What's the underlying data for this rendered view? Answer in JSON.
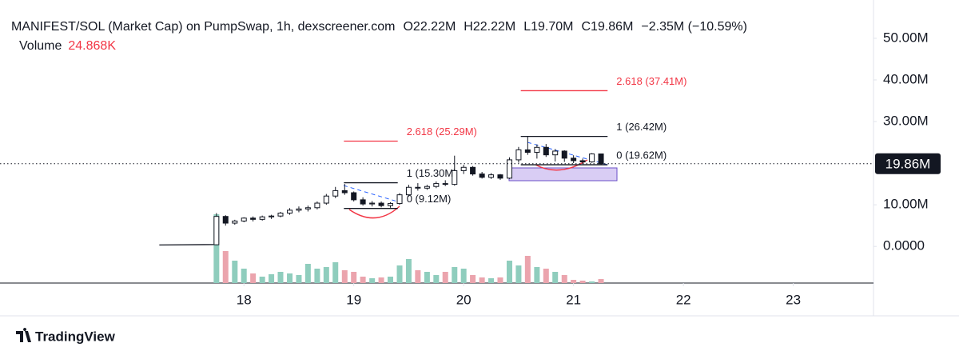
{
  "chart_data": {
    "type": "candlestick",
    "title": "MANIFEST/SOL (Market Cap) on PumpSwap, 1h, dexscreener.com",
    "ohlc_legend": [
      "O22.22M",
      "H22.22M",
      "L19.70M",
      "C19.86M",
      "−2.35M (−10.59%)"
    ],
    "volume_title": "Volume",
    "volume_label": "24.868K",
    "x": [
      17.75,
      17.833,
      17.917,
      18,
      18.083,
      18.167,
      18.25,
      18.333,
      18.417,
      18.5,
      18.583,
      18.667,
      18.75,
      18.833,
      18.917,
      19,
      19.083,
      19.167,
      19.25,
      19.333,
      19.417,
      19.5,
      19.583,
      19.667,
      19.75,
      19.833,
      19.917,
      20,
      20.083,
      20.167,
      20.25,
      20.333,
      20.417,
      20.5,
      20.583,
      20.667,
      20.75,
      20.833,
      20.917,
      21,
      21.083,
      21.167,
      21.25
    ],
    "open": [
      0.4,
      7.2,
      5.6,
      6.1,
      6.8,
      6.5,
      7.1,
      7.3,
      8.0,
      8.7,
      9.0,
      9.3,
      10.4,
      12.1,
      13.4,
      12.9,
      11.2,
      10.2,
      10.4,
      9.8,
      10.3,
      12.4,
      14.2,
      14.0,
      14.4,
      15.1,
      14.9,
      18.2,
      19.0,
      17.4,
      16.6,
      17.2,
      16.4,
      20.8,
      23.2,
      22.6,
      23.8,
      22.0,
      22.9,
      21.2,
      20.6,
      20.3,
      22.22
    ],
    "high": [
      8.0,
      7.5,
      6.4,
      7.0,
      7.2,
      7.4,
      7.6,
      8.3,
      9.2,
      9.6,
      9.8,
      10.8,
      12.6,
      14.3,
      15.0,
      13.2,
      11.8,
      10.9,
      10.8,
      10.6,
      12.8,
      14.8,
      15.2,
      14.8,
      15.6,
      15.9,
      21.8,
      19.6,
      19.3,
      17.9,
      17.6,
      17.4,
      21.4,
      23.9,
      26.4,
      24.5,
      24.6,
      23.4,
      23.1,
      21.9,
      21.1,
      22.4,
      22.22
    ],
    "low": [
      0.3,
      5.0,
      5.2,
      5.8,
      6.0,
      6.2,
      6.6,
      7.0,
      7.6,
      8.2,
      8.4,
      8.9,
      10.0,
      11.6,
      12.4,
      10.8,
      9.8,
      9.6,
      9.4,
      9.3,
      10.0,
      12.0,
      13.4,
      13.6,
      14.0,
      14.5,
      14.6,
      17.4,
      17.0,
      16.3,
      16.2,
      16.0,
      16.2,
      20.1,
      22.0,
      21.1,
      21.5,
      20.4,
      20.3,
      20.0,
      19.8,
      20.1,
      19.7
    ],
    "close": [
      7.2,
      5.6,
      6.1,
      6.8,
      6.5,
      7.1,
      7.3,
      8.0,
      8.7,
      9.0,
      9.3,
      10.4,
      12.1,
      13.4,
      12.9,
      11.2,
      10.2,
      10.4,
      9.8,
      10.3,
      12.4,
      14.2,
      14.0,
      14.4,
      15.1,
      14.9,
      18.2,
      19.0,
      17.4,
      16.6,
      17.2,
      16.4,
      20.8,
      23.2,
      22.6,
      23.8,
      22.0,
      22.9,
      21.2,
      20.6,
      20.3,
      22.22,
      19.86
    ],
    "volume": [
      430,
      200,
      140,
      90,
      60,
      40,
      55,
      70,
      60,
      50,
      120,
      90,
      100,
      130,
      80,
      70,
      40,
      30,
      35,
      40,
      110,
      150,
      80,
      70,
      50,
      70,
      100,
      90,
      50,
      35,
      30,
      35,
      140,
      110,
      170,
      100,
      90,
      70,
      50,
      20,
      15,
      10,
      24.868
    ],
    "pre_line": {
      "x": [
        17.23,
        17.74
      ],
      "values": [
        0.35,
        0.45
      ]
    },
    "up_color": "#ffffff",
    "down_color": "#131722",
    "volume_up_color": "#8fcdbd",
    "volume_down_color": "#eba4ad",
    "vlim": [
      0,
      500
    ],
    "xlim": [
      15.78,
      23.73
    ],
    "xticks": [
      18,
      19,
      20,
      21,
      22,
      23
    ],
    "ylim": [
      -8.8,
      59.2
    ],
    "yticks": [
      {
        "value": 0,
        "label": "0.0000"
      },
      {
        "value": 10,
        "label": "10.00M"
      },
      {
        "value": 20,
        "label": "20.00M"
      },
      {
        "value": 30,
        "label": "30.00M"
      },
      {
        "value": 40,
        "label": "40.00M"
      },
      {
        "value": 50,
        "label": "50.00M"
      }
    ],
    "last_price": {
      "value": 19.86,
      "label": "19.86M"
    },
    "fib_sets": [
      {
        "x": [
          18.91,
          19.4
        ],
        "levels": [
          {
            "value": 25.29,
            "label": "2.618 (25.29M)",
            "color": "#f23645"
          },
          {
            "value": 15.3,
            "label": "1 (15.30M)",
            "color": "#131722"
          },
          {
            "value": 9.12,
            "label": "0 (9.12M)",
            "color": "#131722"
          }
        ]
      },
      {
        "x": [
          20.52,
          21.31
        ],
        "levels": [
          {
            "value": 37.41,
            "label": "2.618 (37.41M)",
            "color": "#f23645"
          },
          {
            "value": 26.42,
            "label": "1 (26.42M)",
            "color": "#131722"
          },
          {
            "value": 19.62,
            "label": "0 (19.62M)",
            "color": "#131722"
          }
        ]
      }
    ],
    "brand": "TradingView"
  }
}
